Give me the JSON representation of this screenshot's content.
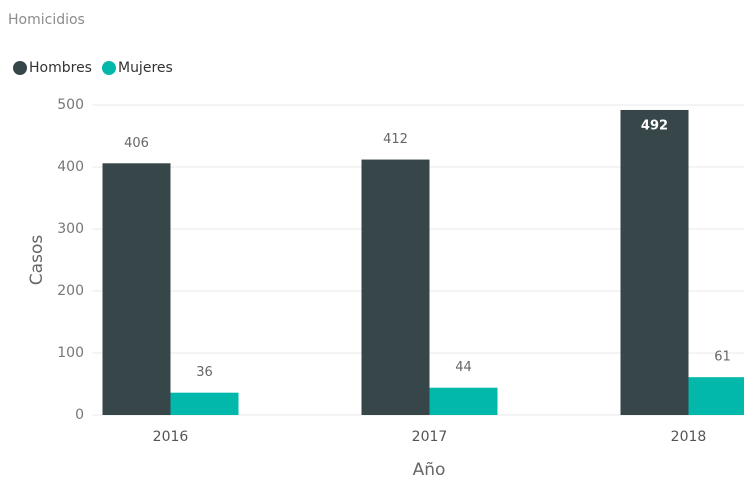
{
  "chart_data": {
    "type": "bar",
    "title": "Homicidios",
    "categories": [
      "2016",
      "2017",
      "2018"
    ],
    "series": [
      {
        "name": "Hombres",
        "color": "#374649",
        "values": [
          406,
          412,
          492
        ]
      },
      {
        "name": "Mujeres",
        "color": "#01b8aa",
        "values": [
          36,
          44,
          61
        ]
      }
    ],
    "ylim": [
      0,
      500
    ],
    "yticks": [
      0,
      100,
      200,
      300,
      400,
      500
    ],
    "grid": true,
    "y_label": "Casos",
    "x_label": "Año",
    "legend": "top-left"
  }
}
